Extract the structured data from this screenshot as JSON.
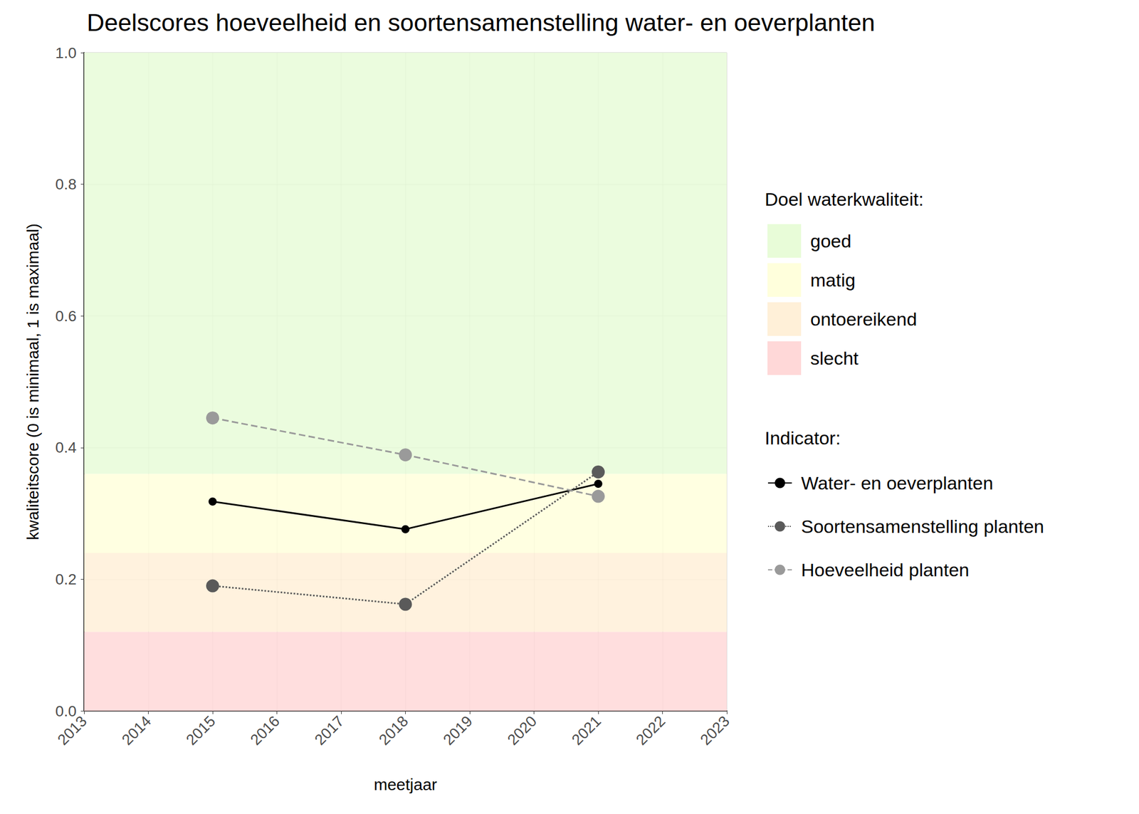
{
  "chart_data": {
    "type": "line",
    "title": "Deelscores hoeveelheid en soortensamenstelling water- en oeverplanten",
    "x_label": "meetjaar",
    "y_label": "kwaliteitscore (0 is minimaal, 1 is maximaal)",
    "x": [
      2015,
      2018,
      2021
    ],
    "xlim": [
      2013,
      2023
    ],
    "xticks": [
      2013,
      2014,
      2015,
      2016,
      2017,
      2018,
      2019,
      2020,
      2021,
      2022,
      2023
    ],
    "ylim": [
      0,
      1
    ],
    "yticks": [
      {
        "value": 0,
        "label": "0.0"
      },
      0.2,
      0.4,
      0.6,
      0.8,
      {
        "value": 1,
        "label": "1.0"
      }
    ],
    "grid": true,
    "legend": "right",
    "band_legend_title": "Doel waterkwaliteit:",
    "series_legend_title": "Indicator:",
    "bands": [
      {
        "name": "goed",
        "from": 0.36,
        "to": 1.0,
        "color": "#e8fcd8"
      },
      {
        "name": "matig",
        "from": 0.24,
        "to": 0.36,
        "color": "#ffffdc"
      },
      {
        "name": "ontoereikend",
        "from": 0.12,
        "to": 0.24,
        "color": "#fff0d8"
      },
      {
        "name": "slecht",
        "from": 0,
        "to": 0.12,
        "color": "#ffd8d8"
      }
    ],
    "series": [
      {
        "name": "Water- en oeverplanten",
        "color": "#000000",
        "line_style": "solid",
        "marker": "circle",
        "values": [
          0.318,
          0.276,
          0.345
        ]
      },
      {
        "name": "Soortensamenstelling planten",
        "color": "#5a5a5a",
        "line_style": "dotted",
        "marker": "circle",
        "values": [
          0.19,
          0.162,
          0.363
        ]
      },
      {
        "name": "Hoeveelheid planten",
        "color": "#9a9a9a",
        "line_style": "dashed",
        "marker": "circle",
        "values": [
          0.445,
          0.389,
          0.326
        ]
      }
    ]
  }
}
